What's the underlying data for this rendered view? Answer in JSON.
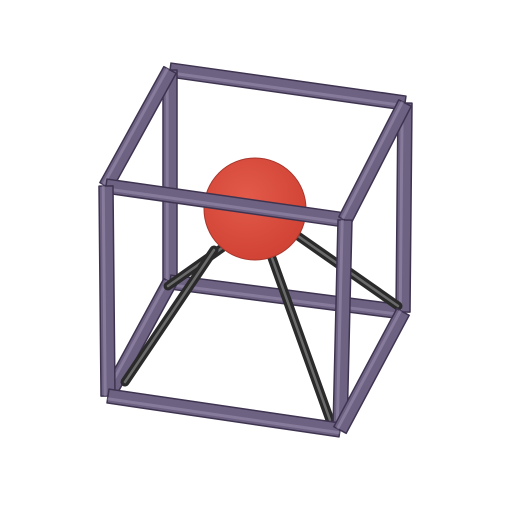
{
  "scene": {
    "frame_color": "#6e6282",
    "frame_color_light": "#9c8fb0",
    "frame_color_dark": "#3e3450",
    "sphere_color": "#d94a3c",
    "sphere_edge_color": "#a8362c",
    "strut_color": "#2a2a2a",
    "strut_color_light": "#6a6a6a",
    "background_color": "#ffffff"
  }
}
